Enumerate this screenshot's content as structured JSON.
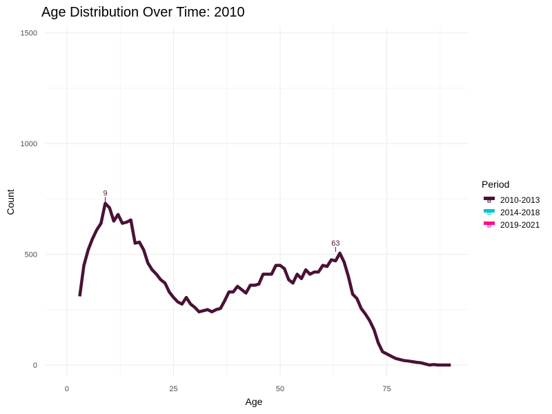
{
  "chart_data": {
    "type": "line",
    "title": "Age Distribution Over Time: 2010",
    "xlabel": "Age",
    "ylabel": "Count",
    "xlim": [
      -5,
      94
    ],
    "ylim": [
      -50,
      1530
    ],
    "x_ticks": [
      0,
      25,
      50,
      75
    ],
    "x_tick_labels": [
      "0",
      "25",
      "50",
      "75"
    ],
    "y_ticks": [
      0,
      500,
      1000,
      1500
    ],
    "y_tick_labels": [
      "0",
      "500",
      "1000",
      "1500"
    ],
    "grid": true,
    "legend": {
      "title": "Period",
      "placement": "right",
      "entries": [
        {
          "label": "2010-2013",
          "color": "#4a1235"
        },
        {
          "label": "2014-2018",
          "color": "#00c5d6"
        },
        {
          "label": "2019-2021",
          "color": "#ff0f8a"
        }
      ]
    },
    "series": [
      {
        "name": "2010-2013",
        "color": "#4a1235",
        "x": [
          3,
          4,
          5,
          6,
          7,
          8,
          9,
          10,
          11,
          12,
          13,
          14,
          15,
          16,
          17,
          18,
          19,
          20,
          21,
          22,
          23,
          24,
          25,
          26,
          27,
          28,
          29,
          30,
          31,
          32,
          33,
          34,
          35,
          36,
          37,
          38,
          39,
          40,
          41,
          42,
          43,
          44,
          45,
          46,
          47,
          48,
          49,
          50,
          51,
          52,
          53,
          54,
          55,
          56,
          57,
          58,
          59,
          60,
          61,
          62,
          63,
          64,
          65,
          66,
          67,
          68,
          69,
          70,
          71,
          72,
          73,
          74,
          75,
          76,
          77,
          78,
          79,
          80,
          81,
          82,
          83,
          84,
          85,
          86,
          87,
          88,
          89,
          90
        ],
        "y": [
          310,
          450,
          520,
          570,
          610,
          640,
          730,
          710,
          650,
          680,
          640,
          645,
          655,
          550,
          555,
          520,
          460,
          430,
          410,
          385,
          370,
          330,
          305,
          285,
          275,
          305,
          275,
          260,
          240,
          245,
          250,
          240,
          250,
          255,
          290,
          330,
          330,
          355,
          340,
          325,
          360,
          360,
          365,
          410,
          410,
          410,
          450,
          450,
          435,
          385,
          370,
          410,
          390,
          430,
          410,
          420,
          420,
          450,
          445,
          475,
          470,
          505,
          465,
          400,
          320,
          300,
          255,
          230,
          200,
          160,
          100,
          60,
          50,
          40,
          30,
          25,
          20,
          18,
          15,
          12,
          10,
          5,
          0,
          2,
          0,
          0,
          0,
          0
        ]
      },
      {
        "name": "2014-2018",
        "color": "#00c5d6",
        "x": [],
        "y": []
      },
      {
        "name": "2019-2021",
        "color": "#ff0f8a",
        "x": [],
        "y": []
      }
    ],
    "annotations": [
      {
        "text": "9",
        "x": 9,
        "y": 730,
        "color": "#4a1235"
      },
      {
        "text": "63",
        "x": 63,
        "y": 505,
        "color": "#4a1235"
      }
    ]
  }
}
